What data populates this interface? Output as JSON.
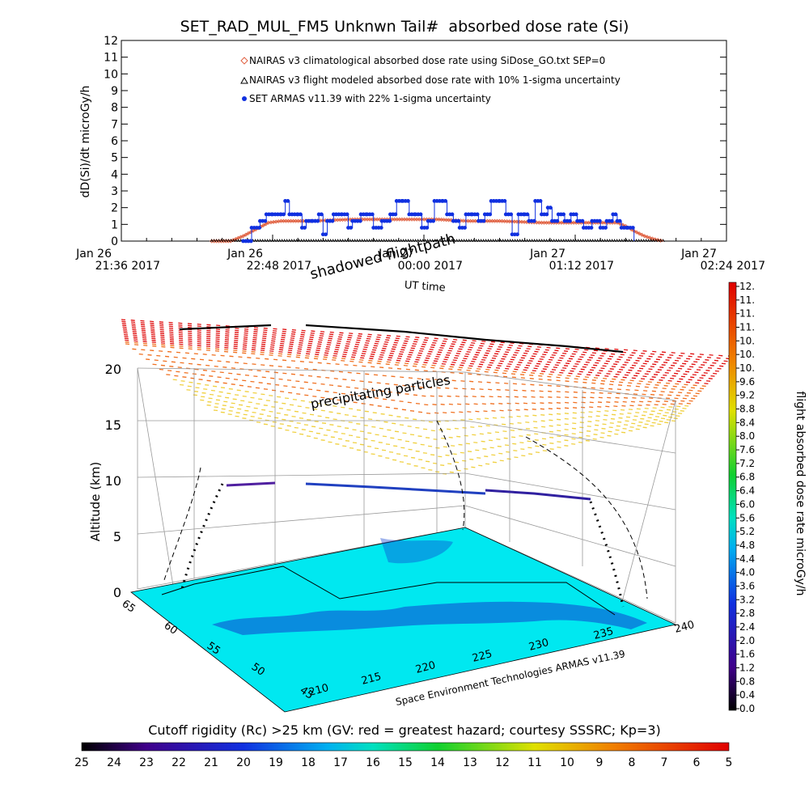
{
  "title": "SET_RAD_MUL_FM5 Unknwn Tail#  absorbed dose rate (Si)",
  "chart_data": [
    {
      "type": "line",
      "title": "SET_RAD_MUL_FM5 Unknwn Tail#  absorbed dose rate (Si)",
      "ylabel": "dD(Si)/dt microGy/h",
      "xlabel": "UT time",
      "ylim": [
        0,
        12
      ],
      "yticks": [
        "0",
        "1",
        "2",
        "3",
        "4",
        "5",
        "6",
        "7",
        "8",
        "9",
        "10",
        "11",
        "12"
      ],
      "xlim_minutes": [
        0,
        288
      ],
      "xticks": [
        {
          "minute": 0,
          "line1": "Jan 26",
          "line2": "21:36 2017"
        },
        {
          "minute": 72,
          "line1": "Jan 26",
          "line2": "22:48 2017"
        },
        {
          "minute": 144,
          "line1": "Jan 27",
          "line2": "00:00 2017"
        },
        {
          "minute": 216,
          "line1": "Jan 27",
          "line2": "01:12 2017"
        },
        {
          "minute": 288,
          "line1": "Jan 27",
          "line2": "02:24 2017"
        }
      ],
      "legend_position": "top-center",
      "series": [
        {
          "name": "NAIRAS v3 climatological absorbed dose rate using SiDose_GO.txt SEP=0",
          "color": "#e06040",
          "marker": "diamond",
          "points": [
            [
              43,
              0
            ],
            [
              52,
              0
            ],
            [
              58,
              0.3
            ],
            [
              64,
              0.7
            ],
            [
              70,
              1.1
            ],
            [
              76,
              1.2
            ],
            [
              90,
              1.2
            ],
            [
              110,
              1.3
            ],
            [
              130,
              1.3
            ],
            [
              150,
              1.3
            ],
            [
              165,
              1.2
            ],
            [
              180,
              1.2
            ],
            [
              200,
              1.1
            ],
            [
              220,
              1.1
            ],
            [
              236,
              1.1
            ],
            [
              240,
              0.9
            ],
            [
              244,
              0.6
            ],
            [
              249,
              0.3
            ],
            [
              254,
              0.1
            ],
            [
              258,
              0
            ]
          ]
        },
        {
          "name": "NAIRAS v3 flight modeled absorbed dose rate with 10% 1-sigma uncertainty",
          "color": "#000000",
          "marker": "triangle",
          "points": [
            [
              43,
              0
            ],
            [
              258,
              0
            ]
          ]
        },
        {
          "name": "SET ARMAS v11.39 with 22% 1-sigma uncertainty",
          "color": "#1030e0",
          "marker": "circle",
          "points": [
            [
              58,
              0
            ],
            [
              62,
              0.8
            ],
            [
              66,
              1.2
            ],
            [
              69,
              1.6
            ],
            [
              72,
              1.6
            ],
            [
              76,
              1.6
            ],
            [
              78,
              2.4
            ],
            [
              80,
              1.6
            ],
            [
              84,
              1.6
            ],
            [
              86,
              0.8
            ],
            [
              88,
              1.2
            ],
            [
              91,
              1.2
            ],
            [
              94,
              1.6
            ],
            [
              96,
              0.4
            ],
            [
              98,
              1.2
            ],
            [
              101,
              1.6
            ],
            [
              105,
              1.6
            ],
            [
              108,
              0.8
            ],
            [
              110,
              1.2
            ],
            [
              114,
              1.6
            ],
            [
              117,
              1.6
            ],
            [
              120,
              0.8
            ],
            [
              124,
              1.2
            ],
            [
              128,
              1.6
            ],
            [
              131,
              2.4
            ],
            [
              134,
              2.4
            ],
            [
              137,
              1.6
            ],
            [
              140,
              1.6
            ],
            [
              143,
              0.8
            ],
            [
              146,
              1.2
            ],
            [
              149,
              2.4
            ],
            [
              153,
              2.4
            ],
            [
              155,
              1.6
            ],
            [
              158,
              1.2
            ],
            [
              161,
              0.8
            ],
            [
              164,
              1.6
            ],
            [
              167,
              1.6
            ],
            [
              170,
              1.2
            ],
            [
              173,
              1.6
            ],
            [
              176,
              2.4
            ],
            [
              180,
              2.4
            ],
            [
              183,
              1.6
            ],
            [
              186,
              0.4
            ],
            [
              189,
              1.6
            ],
            [
              192,
              1.6
            ],
            [
              194,
              1.2
            ],
            [
              197,
              2.4
            ],
            [
              200,
              1.6
            ],
            [
              203,
              2.0
            ],
            [
              205,
              1.2
            ],
            [
              208,
              1.6
            ],
            [
              211,
              1.2
            ],
            [
              214,
              1.6
            ],
            [
              217,
              1.2
            ],
            [
              220,
              0.8
            ],
            [
              224,
              1.2
            ],
            [
              228,
              0.8
            ],
            [
              231,
              1.2
            ],
            [
              234,
              1.6
            ],
            [
              236,
              1.2
            ],
            [
              238,
              0.8
            ],
            [
              241,
              0.8
            ],
            [
              244,
              0
            ]
          ]
        }
      ]
    },
    {
      "type": "other",
      "description_labels": {
        "annotation_top": "shadowed flightpath",
        "annotation_mid": "precipitating particles",
        "zlabel": "Altitude (km)",
        "zticks": [
          "0",
          "5",
          "10",
          "15",
          "20"
        ],
        "x_axis_ticks": [
          "210",
          "215",
          "220",
          "225",
          "230",
          "235",
          "240"
        ],
        "y_axis_ticks": [
          "45",
          "50",
          "55",
          "60",
          "65"
        ],
        "credit": "Space Environment Technologies ARMAS v11.39"
      }
    }
  ],
  "colorbar_right": {
    "label": "flight absorbed dose rate microGy/h",
    "ticks": [
      "12.",
      "11.",
      "11.",
      "11.",
      "10.",
      "10.",
      "10.",
      "9.6",
      "9.2",
      "8.8",
      "8.4",
      "8.0",
      "7.6",
      "7.2",
      "6.8",
      "6.4",
      "6.0",
      "5.6",
      "5.2",
      "4.8",
      "4.4",
      "4.0",
      "3.6",
      "3.2",
      "2.8",
      "2.4",
      "2.0",
      "1.6",
      "1.2",
      "0.8",
      "0.4",
      "0.0"
    ]
  },
  "colorbar_bottom": {
    "title": "Cutoff rigidity (Rc) >25 km (GV: red = greatest hazard; courtesy SSSRC; Kp=3)",
    "ticks": [
      "25",
      "24",
      "23",
      "22",
      "21",
      "20",
      "19",
      "18",
      "17",
      "16",
      "15",
      "14",
      "13",
      "12",
      "11",
      "10",
      "9",
      "8",
      "7",
      "6",
      "5"
    ]
  },
  "colors": {
    "series_red": "#e06040",
    "series_blue": "#1030e0",
    "ground_cyan": "#00e8f0",
    "hazard_red": "#e01010",
    "hazard_yellow": "#f0d040"
  }
}
